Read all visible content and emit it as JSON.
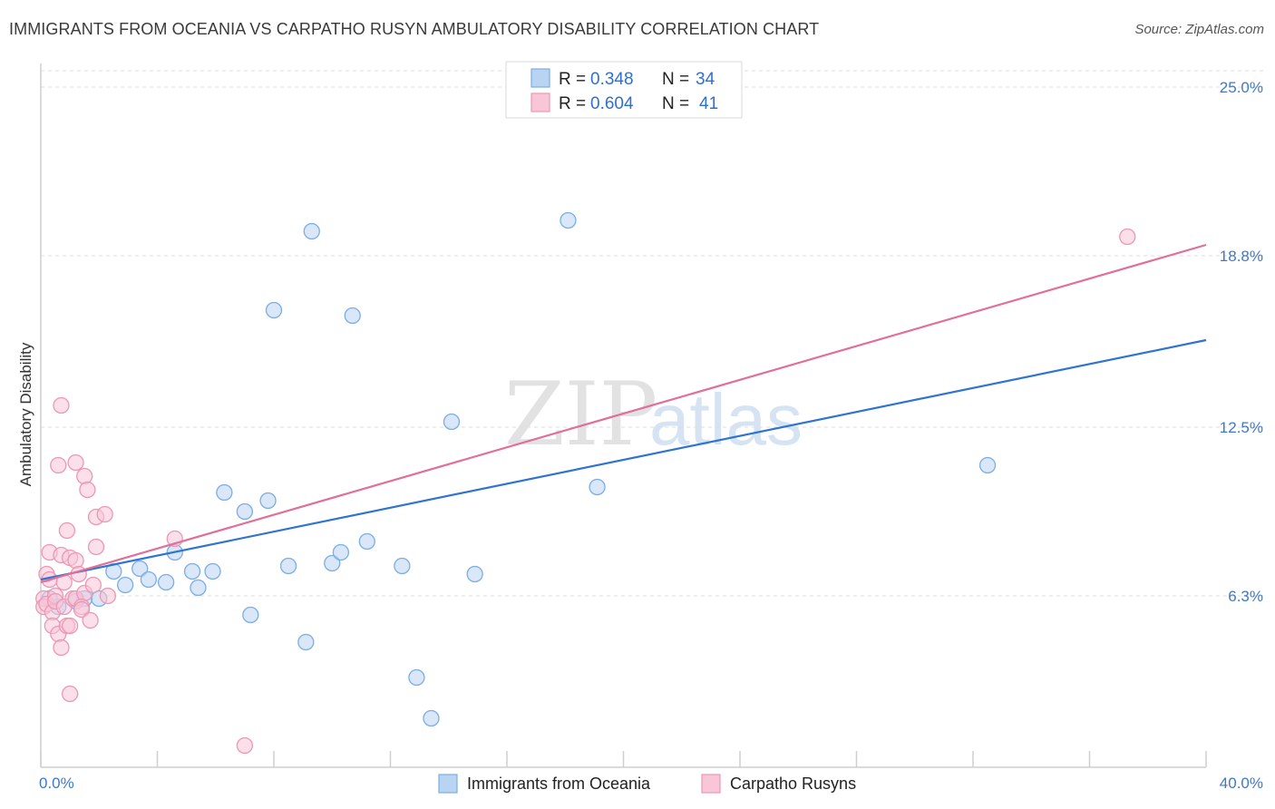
{
  "title": "IMMIGRANTS FROM OCEANIA VS CARPATHO RUSYN AMBULATORY DISABILITY CORRELATION CHART",
  "source": "Source: ZipAtlas.com",
  "watermark": {
    "zip": "ZIP",
    "atlas": "atlas"
  },
  "legend_top": [
    {
      "r_label": "R =",
      "r_value": "0.348",
      "n_label": "N =",
      "n_value": "34"
    },
    {
      "r_label": "R =",
      "r_value": "0.604",
      "n_label": "N =",
      "n_value": "41"
    }
  ],
  "chart_data": {
    "type": "scatter",
    "title": "IMMIGRANTS FROM OCEANIA VS CARPATHO RUSYN AMBULATORY DISABILITY CORRELATION CHART",
    "xlabel": "",
    "ylabel": "Ambulatory Disability",
    "xlim": [
      0,
      40
    ],
    "ylim": [
      0,
      26
    ],
    "x_tick_labels": [
      "0.0%",
      "40.0%"
    ],
    "y_ticks": [
      6.3,
      12.5,
      18.8,
      25.0
    ],
    "y_tick_labels": [
      "6.3%",
      "12.5%",
      "18.8%",
      "25.0%"
    ],
    "grid": true,
    "legend_position": "bottom",
    "series": [
      {
        "name": "Immigrants from Oceania",
        "color": "#7baee6",
        "fill": "#b9d3f2",
        "line_color": "#2e74d0",
        "trend": {
          "x0": 0,
          "y0": 6.9,
          "x1": 40,
          "y1": 15.7
        },
        "points": [
          {
            "x": 0.6,
            "y": 5.9
          },
          {
            "x": 1.5,
            "y": 6.2
          },
          {
            "x": 2.0,
            "y": 6.2
          },
          {
            "x": 2.5,
            "y": 7.2
          },
          {
            "x": 2.9,
            "y": 6.7
          },
          {
            "x": 3.4,
            "y": 7.3
          },
          {
            "x": 3.7,
            "y": 6.9
          },
          {
            "x": 4.3,
            "y": 6.8
          },
          {
            "x": 4.6,
            "y": 7.9
          },
          {
            "x": 5.2,
            "y": 7.2
          },
          {
            "x": 5.4,
            "y": 6.6
          },
          {
            "x": 5.9,
            "y": 7.2
          },
          {
            "x": 6.3,
            "y": 10.1
          },
          {
            "x": 7.0,
            "y": 9.4
          },
          {
            "x": 7.2,
            "y": 5.6
          },
          {
            "x": 7.8,
            "y": 9.8
          },
          {
            "x": 8.0,
            "y": 16.8
          },
          {
            "x": 8.5,
            "y": 7.4
          },
          {
            "x": 9.1,
            "y": 4.6
          },
          {
            "x": 9.3,
            "y": 19.7
          },
          {
            "x": 10.0,
            "y": 7.5
          },
          {
            "x": 10.3,
            "y": 7.9
          },
          {
            "x": 10.7,
            "y": 16.6
          },
          {
            "x": 11.2,
            "y": 8.3
          },
          {
            "x": 12.4,
            "y": 7.4
          },
          {
            "x": 12.9,
            "y": 3.3
          },
          {
            "x": 13.4,
            "y": 1.8
          },
          {
            "x": 14.1,
            "y": 12.7
          },
          {
            "x": 14.9,
            "y": 7.1
          },
          {
            "x": 18.1,
            "y": 20.1
          },
          {
            "x": 19.1,
            "y": 10.3
          },
          {
            "x": 32.5,
            "y": 11.1
          },
          {
            "x": 0.3,
            "y": 6.2
          },
          {
            "x": 1.2,
            "y": 6.1
          }
        ]
      },
      {
        "name": "Carpatho Rusyns",
        "color": "#ee97b5",
        "fill": "#f8c6d7",
        "line_color": "#e06f99",
        "trend": {
          "x0": 0,
          "y0": 6.8,
          "x1": 40,
          "y1": 19.2
        },
        "points": [
          {
            "x": 0.1,
            "y": 6.2
          },
          {
            "x": 0.1,
            "y": 5.9
          },
          {
            "x": 0.2,
            "y": 6.0
          },
          {
            "x": 0.2,
            "y": 7.1
          },
          {
            "x": 0.3,
            "y": 6.9
          },
          {
            "x": 0.3,
            "y": 7.9
          },
          {
            "x": 0.4,
            "y": 5.7
          },
          {
            "x": 0.4,
            "y": 5.2
          },
          {
            "x": 0.5,
            "y": 6.3
          },
          {
            "x": 0.5,
            "y": 6.1
          },
          {
            "x": 0.6,
            "y": 4.9
          },
          {
            "x": 0.6,
            "y": 11.1
          },
          {
            "x": 0.7,
            "y": 13.3
          },
          {
            "x": 0.7,
            "y": 7.8
          },
          {
            "x": 0.7,
            "y": 4.4
          },
          {
            "x": 0.8,
            "y": 6.8
          },
          {
            "x": 0.8,
            "y": 5.9
          },
          {
            "x": 0.9,
            "y": 8.7
          },
          {
            "x": 0.9,
            "y": 5.2
          },
          {
            "x": 1.0,
            "y": 7.7
          },
          {
            "x": 1.0,
            "y": 5.2
          },
          {
            "x": 1.0,
            "y": 2.7
          },
          {
            "x": 1.1,
            "y": 6.2
          },
          {
            "x": 1.2,
            "y": 7.6
          },
          {
            "x": 1.2,
            "y": 6.2
          },
          {
            "x": 1.2,
            "y": 11.2
          },
          {
            "x": 1.3,
            "y": 7.1
          },
          {
            "x": 1.5,
            "y": 6.4
          },
          {
            "x": 1.4,
            "y": 5.9
          },
          {
            "x": 1.4,
            "y": 5.8
          },
          {
            "x": 1.5,
            "y": 10.7
          },
          {
            "x": 1.6,
            "y": 10.2
          },
          {
            "x": 1.7,
            "y": 5.4
          },
          {
            "x": 1.8,
            "y": 6.7
          },
          {
            "x": 1.9,
            "y": 9.2
          },
          {
            "x": 1.9,
            "y": 8.1
          },
          {
            "x": 2.2,
            "y": 9.3
          },
          {
            "x": 2.3,
            "y": 6.3
          },
          {
            "x": 4.6,
            "y": 8.4
          },
          {
            "x": 7.0,
            "y": 0.8
          },
          {
            "x": 37.3,
            "y": 19.5
          }
        ]
      }
    ]
  }
}
